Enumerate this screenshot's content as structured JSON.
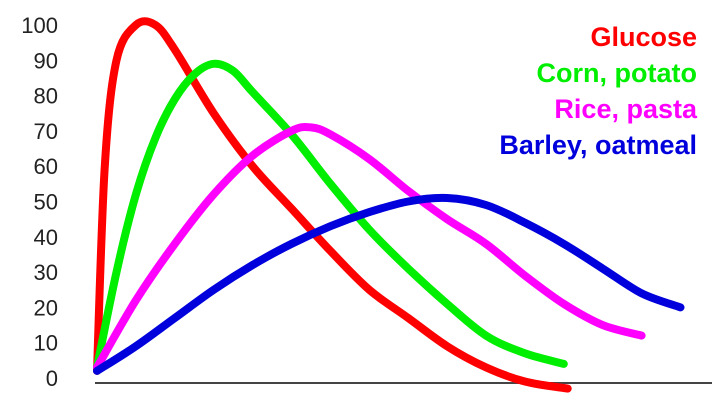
{
  "chart_data": {
    "type": "line",
    "title": "",
    "xlabel": "",
    "ylabel": "",
    "ylim": [
      0,
      100
    ],
    "yticks": [
      "0",
      "10",
      "20",
      "30",
      "40",
      "50",
      "60",
      "70",
      "80",
      "90",
      "100"
    ],
    "grid": false,
    "legend_position": "top-right",
    "series": [
      {
        "name": "Glucose",
        "color": "#ff0000",
        "points": [
          [
            0,
            2
          ],
          [
            2,
            60
          ],
          [
            5,
            90
          ],
          [
            10,
            100
          ],
          [
            15,
            100
          ],
          [
            20,
            93
          ],
          [
            30,
            75
          ],
          [
            40,
            60
          ],
          [
            50,
            48
          ],
          [
            60,
            36
          ],
          [
            70,
            25
          ],
          [
            80,
            17
          ],
          [
            90,
            9
          ],
          [
            100,
            3
          ],
          [
            110,
            -1
          ],
          [
            121,
            -3
          ]
        ]
      },
      {
        "name": "Corn, potato",
        "color": "#00ee00",
        "points": [
          [
            0,
            3
          ],
          [
            5,
            30
          ],
          [
            10,
            52
          ],
          [
            15,
            68
          ],
          [
            20,
            79
          ],
          [
            25,
            86
          ],
          [
            30,
            89
          ],
          [
            35,
            87
          ],
          [
            40,
            81
          ],
          [
            50,
            69
          ],
          [
            60,
            55
          ],
          [
            70,
            42
          ],
          [
            80,
            31
          ],
          [
            90,
            21
          ],
          [
            100,
            12
          ],
          [
            110,
            7
          ],
          [
            120,
            4
          ]
        ]
      },
      {
        "name": "Rice, pasta",
        "color": "#ff00ff",
        "points": [
          [
            0,
            3
          ],
          [
            10,
            22
          ],
          [
            20,
            38
          ],
          [
            30,
            52
          ],
          [
            40,
            63
          ],
          [
            50,
            70
          ],
          [
            55,
            71
          ],
          [
            60,
            69
          ],
          [
            70,
            62
          ],
          [
            80,
            53
          ],
          [
            90,
            45
          ],
          [
            100,
            38
          ],
          [
            110,
            29
          ],
          [
            120,
            21
          ],
          [
            130,
            15
          ],
          [
            140,
            12
          ]
        ]
      },
      {
        "name": "Barley, oatmeal",
        "color": "#0000dd",
        "points": [
          [
            0,
            2
          ],
          [
            10,
            9
          ],
          [
            20,
            17
          ],
          [
            30,
            25
          ],
          [
            40,
            32
          ],
          [
            50,
            38
          ],
          [
            60,
            43
          ],
          [
            70,
            47
          ],
          [
            80,
            50
          ],
          [
            90,
            51
          ],
          [
            100,
            49
          ],
          [
            110,
            44
          ],
          [
            120,
            38
          ],
          [
            130,
            31
          ],
          [
            140,
            24
          ],
          [
            150,
            20
          ]
        ]
      }
    ]
  }
}
